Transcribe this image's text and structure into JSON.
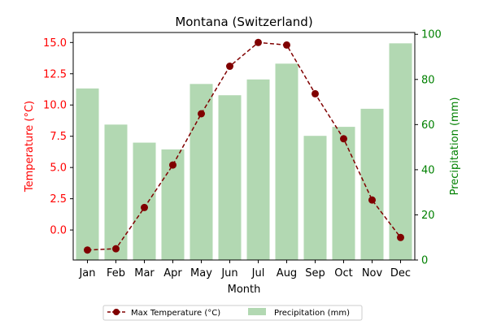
{
  "chart_data": {
    "type": "bar+line",
    "title": "Montana (Switzerland)",
    "xlabel": "Month",
    "categories": [
      "Jan",
      "Feb",
      "Mar",
      "Apr",
      "May",
      "Jun",
      "Jul",
      "Aug",
      "Sep",
      "Oct",
      "Nov",
      "Dec"
    ],
    "series": [
      {
        "name": "Max Temperature (°C)",
        "type": "line",
        "axis": "left",
        "color": "#800000",
        "values": [
          -1.6,
          -1.5,
          1.8,
          5.2,
          9.3,
          13.1,
          15.0,
          14.8,
          10.9,
          7.3,
          2.4,
          -0.6
        ]
      },
      {
        "name": "Precipitation (mm)",
        "type": "bar",
        "axis": "right",
        "color": "#b2d8b2",
        "values": [
          76,
          60,
          52,
          49,
          78,
          73,
          80,
          87,
          55,
          59,
          67,
          96
        ]
      }
    ],
    "y_left": {
      "label": "Temperature (°C)",
      "color": "#ff0000",
      "range": [
        -2.4,
        15.8
      ],
      "ticks": [
        0.0,
        2.5,
        5.0,
        7.5,
        10.0,
        12.5,
        15.0
      ],
      "tick_labels": [
        "0.0",
        "2.5",
        "5.0",
        "7.5",
        "10.0",
        "12.5",
        "15.0"
      ]
    },
    "y_right": {
      "label": "Precipitation (mm)",
      "color": "#008000",
      "range": [
        0,
        100.8
      ],
      "ticks": [
        0,
        20,
        40,
        60,
        80,
        100
      ],
      "tick_labels": [
        "0",
        "20",
        "40",
        "60",
        "80",
        "100"
      ]
    },
    "legend": {
      "position": "bottom-center",
      "entries": [
        "Max Temperature (°C)",
        "Precipitation (mm)"
      ]
    },
    "grid": false
  }
}
